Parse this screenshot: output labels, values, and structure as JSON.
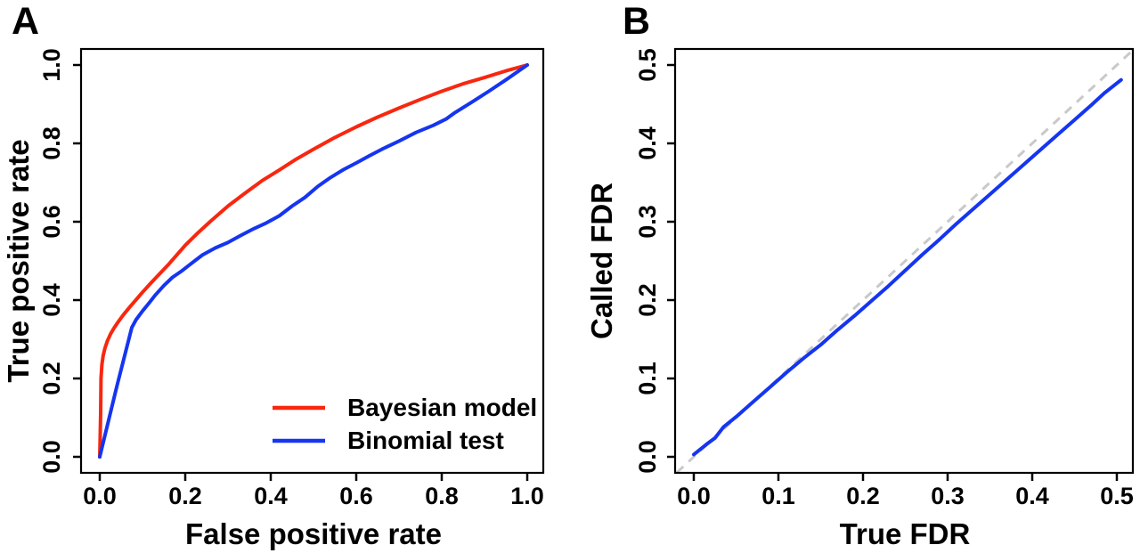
{
  "figure": {
    "background": "#ffffff",
    "axis_color": "#000000"
  },
  "chart_data": [
    {
      "type": "line",
      "panel_label": "A",
      "title": "",
      "xlabel": "False positive rate",
      "ylabel": "True positive rate",
      "xlim": [
        0,
        1
      ],
      "ylim": [
        0,
        1
      ],
      "grid": false,
      "xticks": [
        0,
        0.2,
        0.4,
        0.6,
        0.8,
        1.0
      ],
      "xtick_labels": [
        "0.0",
        "0.2",
        "0.4",
        "0.6",
        "0.8",
        "1.0"
      ],
      "yticks": [
        0,
        0.2,
        0.4,
        0.6,
        0.8,
        1.0
      ],
      "ytick_labels": [
        "0.0",
        "0.2",
        "0.4",
        "0.6",
        "0.8",
        "1.0"
      ],
      "legend": {
        "position": "bottom-right-inside",
        "entries": [
          {
            "label": "Bayesian model",
            "color": "#f8270f"
          },
          {
            "label": "Binomial test",
            "color": "#1535f1"
          }
        ]
      },
      "series": [
        {
          "name": "Bayesian model",
          "color": "#f8270f",
          "points": [
            [
              0.0,
              0.0
            ],
            [
              0.002,
              0.11
            ],
            [
              0.003,
              0.2
            ],
            [
              0.005,
              0.235
            ],
            [
              0.008,
              0.258
            ],
            [
              0.012,
              0.277
            ],
            [
              0.018,
              0.296
            ],
            [
              0.025,
              0.313
            ],
            [
              0.033,
              0.328
            ],
            [
              0.043,
              0.344
            ],
            [
              0.055,
              0.362
            ],
            [
              0.07,
              0.382
            ],
            [
              0.085,
              0.401
            ],
            [
              0.1,
              0.42
            ],
            [
              0.12,
              0.444
            ],
            [
              0.14,
              0.467
            ],
            [
              0.16,
              0.49
            ],
            [
              0.18,
              0.515
            ],
            [
              0.2,
              0.54
            ],
            [
              0.23,
              0.572
            ],
            [
              0.26,
              0.602
            ],
            [
              0.3,
              0.64
            ],
            [
              0.34,
              0.673
            ],
            [
              0.38,
              0.705
            ],
            [
              0.42,
              0.732
            ],
            [
              0.46,
              0.76
            ],
            [
              0.5,
              0.785
            ],
            [
              0.55,
              0.815
            ],
            [
              0.6,
              0.842
            ],
            [
              0.65,
              0.867
            ],
            [
              0.7,
              0.89
            ],
            [
              0.75,
              0.912
            ],
            [
              0.8,
              0.933
            ],
            [
              0.85,
              0.952
            ],
            [
              0.9,
              0.968
            ],
            [
              0.95,
              0.985
            ],
            [
              1.0,
              1.0
            ]
          ]
        },
        {
          "name": "Binomial test",
          "color": "#1535f1",
          "points": [
            [
              0.0,
              0.0
            ],
            [
              0.04,
              0.18
            ],
            [
              0.075,
              0.33
            ],
            [
              0.085,
              0.35
            ],
            [
              0.1,
              0.372
            ],
            [
              0.115,
              0.392
            ],
            [
              0.13,
              0.413
            ],
            [
              0.15,
              0.437
            ],
            [
              0.17,
              0.458
            ],
            [
              0.19,
              0.473
            ],
            [
              0.21,
              0.49
            ],
            [
              0.24,
              0.515
            ],
            [
              0.27,
              0.533
            ],
            [
              0.3,
              0.547
            ],
            [
              0.33,
              0.565
            ],
            [
              0.36,
              0.582
            ],
            [
              0.39,
              0.597
            ],
            [
              0.42,
              0.615
            ],
            [
              0.45,
              0.64
            ],
            [
              0.48,
              0.662
            ],
            [
              0.51,
              0.69
            ],
            [
              0.54,
              0.713
            ],
            [
              0.57,
              0.733
            ],
            [
              0.6,
              0.75
            ],
            [
              0.63,
              0.768
            ],
            [
              0.66,
              0.785
            ],
            [
              0.7,
              0.806
            ],
            [
              0.74,
              0.828
            ],
            [
              0.78,
              0.846
            ],
            [
              0.81,
              0.862
            ],
            [
              0.829,
              0.877
            ],
            [
              0.87,
              0.905
            ],
            [
              0.91,
              0.933
            ],
            [
              0.95,
              0.962
            ],
            [
              1.0,
              1.0
            ]
          ]
        }
      ]
    },
    {
      "type": "line",
      "panel_label": "B",
      "title": "",
      "xlabel": "True FDR",
      "ylabel": "Called FDR",
      "xlim": [
        0,
        0.5
      ],
      "ylim": [
        0,
        0.5
      ],
      "grid": false,
      "xticks": [
        0,
        0.1,
        0.2,
        0.3,
        0.4,
        0.5
      ],
      "xtick_labels": [
        "0.0",
        "0.1",
        "0.2",
        "0.3",
        "0.4",
        "0.5"
      ],
      "yticks": [
        0,
        0.1,
        0.2,
        0.3,
        0.4,
        0.5
      ],
      "ytick_labels": [
        "0.0",
        "0.1",
        "0.2",
        "0.3",
        "0.4",
        "0.5"
      ],
      "reference_line": {
        "description": "y = x identity line",
        "style": "dashed",
        "color": "#c9c9c9",
        "from": [
          -0.02,
          -0.02
        ],
        "to": [
          0.52,
          0.52
        ]
      },
      "series": [
        {
          "name": "Called FDR",
          "color": "#1535f1",
          "points": [
            [
              0.0,
              0.003
            ],
            [
              0.015,
              0.016
            ],
            [
              0.025,
              0.024
            ],
            [
              0.035,
              0.038
            ],
            [
              0.05,
              0.051
            ],
            [
              0.07,
              0.07
            ],
            [
              0.09,
              0.089
            ],
            [
              0.11,
              0.108
            ],
            [
              0.13,
              0.126
            ],
            [
              0.15,
              0.143
            ],
            [
              0.17,
              0.162
            ],
            [
              0.19,
              0.18
            ],
            [
              0.21,
              0.199
            ],
            [
              0.23,
              0.218
            ],
            [
              0.25,
              0.238
            ],
            [
              0.27,
              0.258
            ],
            [
              0.29,
              0.277
            ],
            [
              0.31,
              0.297
            ],
            [
              0.33,
              0.316
            ],
            [
              0.35,
              0.335
            ],
            [
              0.37,
              0.354
            ],
            [
              0.39,
              0.373
            ],
            [
              0.41,
              0.392
            ],
            [
              0.43,
              0.411
            ],
            [
              0.45,
              0.43
            ],
            [
              0.47,
              0.449
            ],
            [
              0.485,
              0.464
            ],
            [
              0.505,
              0.481
            ]
          ]
        }
      ]
    }
  ]
}
